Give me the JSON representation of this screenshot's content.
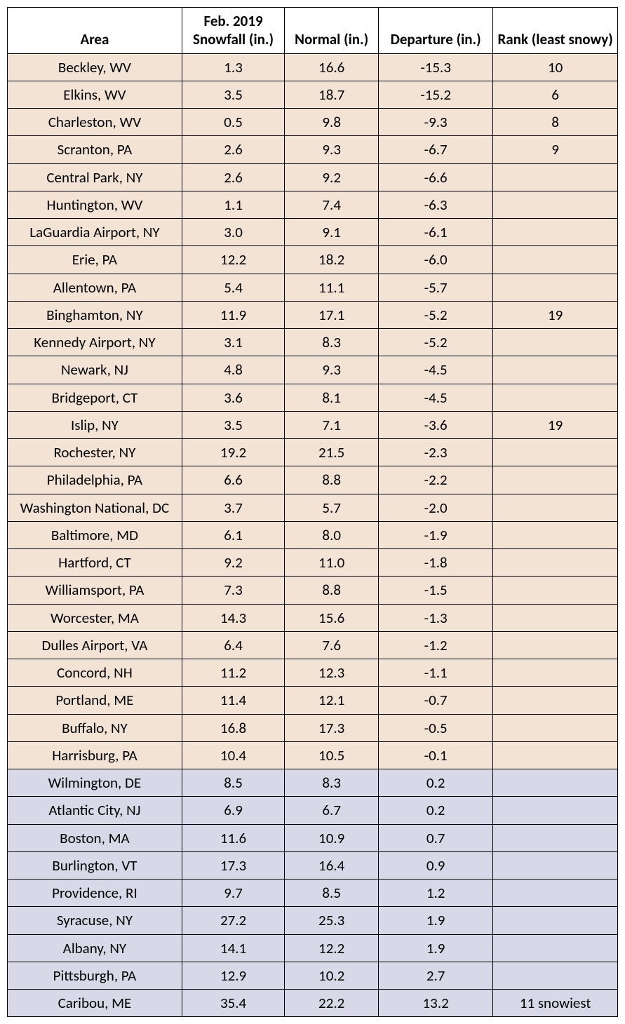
{
  "table": {
    "columns": [
      "Area",
      "Feb. 2019 Snowfall (in.)",
      "Normal (in.)",
      "Departure (in.)",
      "Rank (least snowy)"
    ],
    "col_classes": [
      "c-area",
      "c-snow",
      "c-normal",
      "c-dep",
      "c-rank"
    ],
    "header_bg": "#ffffff",
    "below_bg": "#f3e3d4",
    "above_bg": "#d8d8e8",
    "border_color": "#000000",
    "font_family": "Calibri",
    "font_size_pt": 16,
    "rows": [
      {
        "area": "Beckley, WV",
        "snow": "1.3",
        "normal": "16.6",
        "dep": "-15.3",
        "rank": "10",
        "group": "below"
      },
      {
        "area": "Elkins, WV",
        "snow": "3.5",
        "normal": "18.7",
        "dep": "-15.2",
        "rank": "6",
        "group": "below"
      },
      {
        "area": "Charleston, WV",
        "snow": "0.5",
        "normal": "9.8",
        "dep": "-9.3",
        "rank": "8",
        "group": "below"
      },
      {
        "area": "Scranton, PA",
        "snow": "2.6",
        "normal": "9.3",
        "dep": "-6.7",
        "rank": "9",
        "group": "below"
      },
      {
        "area": "Central Park, NY",
        "snow": "2.6",
        "normal": "9.2",
        "dep": "-6.6",
        "rank": "",
        "group": "below"
      },
      {
        "area": "Huntington, WV",
        "snow": "1.1",
        "normal": "7.4",
        "dep": "-6.3",
        "rank": "",
        "group": "below"
      },
      {
        "area": "LaGuardia Airport, NY",
        "snow": "3.0",
        "normal": "9.1",
        "dep": "-6.1",
        "rank": "",
        "group": "below"
      },
      {
        "area": "Erie, PA",
        "snow": "12.2",
        "normal": "18.2",
        "dep": "-6.0",
        "rank": "",
        "group": "below"
      },
      {
        "area": "Allentown, PA",
        "snow": "5.4",
        "normal": "11.1",
        "dep": "-5.7",
        "rank": "",
        "group": "below"
      },
      {
        "area": "Binghamton, NY",
        "snow": "11.9",
        "normal": "17.1",
        "dep": "-5.2",
        "rank": "19",
        "group": "below"
      },
      {
        "area": "Kennedy Airport, NY",
        "snow": "3.1",
        "normal": "8.3",
        "dep": "-5.2",
        "rank": "",
        "group": "below"
      },
      {
        "area": "Newark, NJ",
        "snow": "4.8",
        "normal": "9.3",
        "dep": "-4.5",
        "rank": "",
        "group": "below"
      },
      {
        "area": "Bridgeport, CT",
        "snow": "3.6",
        "normal": "8.1",
        "dep": "-4.5",
        "rank": "",
        "group": "below"
      },
      {
        "area": "Islip, NY",
        "snow": "3.5",
        "normal": "7.1",
        "dep": "-3.6",
        "rank": "19",
        "group": "below"
      },
      {
        "area": "Rochester, NY",
        "snow": "19.2",
        "normal": "21.5",
        "dep": "-2.3",
        "rank": "",
        "group": "below"
      },
      {
        "area": "Philadelphia, PA",
        "snow": "6.6",
        "normal": "8.8",
        "dep": "-2.2",
        "rank": "",
        "group": "below"
      },
      {
        "area": "Washington National, DC",
        "snow": "3.7",
        "normal": "5.7",
        "dep": "-2.0",
        "rank": "",
        "group": "below"
      },
      {
        "area": "Baltimore, MD",
        "snow": "6.1",
        "normal": "8.0",
        "dep": "-1.9",
        "rank": "",
        "group": "below"
      },
      {
        "area": "Hartford, CT",
        "snow": "9.2",
        "normal": "11.0",
        "dep": "-1.8",
        "rank": "",
        "group": "below"
      },
      {
        "area": "Williamsport, PA",
        "snow": "7.3",
        "normal": "8.8",
        "dep": "-1.5",
        "rank": "",
        "group": "below"
      },
      {
        "area": "Worcester, MA",
        "snow": "14.3",
        "normal": "15.6",
        "dep": "-1.3",
        "rank": "",
        "group": "below"
      },
      {
        "area": "Dulles Airport, VA",
        "snow": "6.4",
        "normal": "7.6",
        "dep": "-1.2",
        "rank": "",
        "group": "below"
      },
      {
        "area": "Concord, NH",
        "snow": "11.2",
        "normal": "12.3",
        "dep": "-1.1",
        "rank": "",
        "group": "below"
      },
      {
        "area": "Portland, ME",
        "snow": "11.4",
        "normal": "12.1",
        "dep": "-0.7",
        "rank": "",
        "group": "below"
      },
      {
        "area": "Buffalo, NY",
        "snow": "16.8",
        "normal": "17.3",
        "dep": "-0.5",
        "rank": "",
        "group": "below"
      },
      {
        "area": "Harrisburg, PA",
        "snow": "10.4",
        "normal": "10.5",
        "dep": "-0.1",
        "rank": "",
        "group": "below"
      },
      {
        "area": "Wilmington, DE",
        "snow": "8.5",
        "normal": "8.3",
        "dep": "0.2",
        "rank": "",
        "group": "above"
      },
      {
        "area": "Atlantic City, NJ",
        "snow": "6.9",
        "normal": "6.7",
        "dep": "0.2",
        "rank": "",
        "group": "above"
      },
      {
        "area": "Boston, MA",
        "snow": "11.6",
        "normal": "10.9",
        "dep": "0.7",
        "rank": "",
        "group": "above"
      },
      {
        "area": "Burlington, VT",
        "snow": "17.3",
        "normal": "16.4",
        "dep": "0.9",
        "rank": "",
        "group": "above"
      },
      {
        "area": "Providence, RI",
        "snow": "9.7",
        "normal": "8.5",
        "dep": "1.2",
        "rank": "",
        "group": "above"
      },
      {
        "area": "Syracuse, NY",
        "snow": "27.2",
        "normal": "25.3",
        "dep": "1.9",
        "rank": "",
        "group": "above"
      },
      {
        "area": "Albany, NY",
        "snow": "14.1",
        "normal": "12.2",
        "dep": "1.9",
        "rank": "",
        "group": "above"
      },
      {
        "area": "Pittsburgh, PA",
        "snow": "12.9",
        "normal": "10.2",
        "dep": "2.7",
        "rank": "",
        "group": "above"
      },
      {
        "area": "Caribou, ME",
        "snow": "35.4",
        "normal": "22.2",
        "dep": "13.2",
        "rank": "11 snowiest",
        "group": "above"
      }
    ]
  }
}
